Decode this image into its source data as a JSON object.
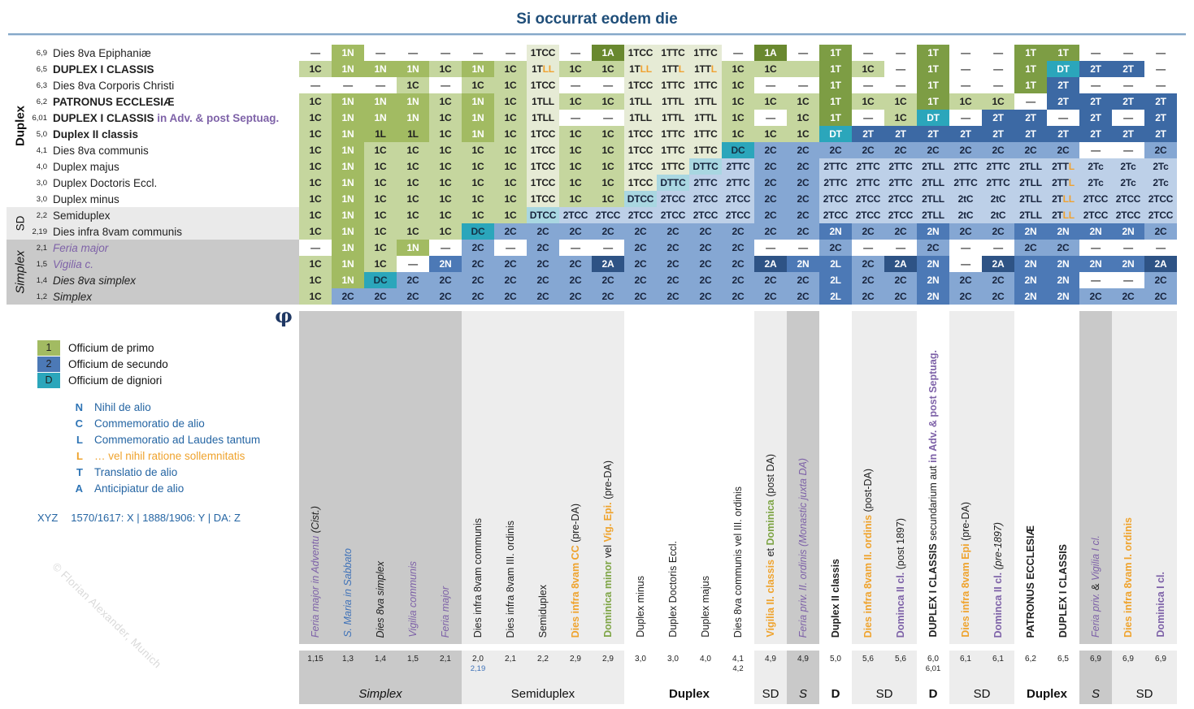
{
  "title": "Si occurrat eodem die",
  "phi": "φ",
  "watermark": "© Florian Alexander, Munich",
  "colors": {
    "title_navy": "#1f4e79",
    "rule_blue": "#84a7c8",
    "purple": "#7e62a8",
    "label_blue": "#3f72b8",
    "orange": "#efa32d",
    "label_green": "#7da444",
    "green_1C": "#c5d69e",
    "green_1N": "#a2bb62",
    "green_pale_1T": "#e6ebd5",
    "green_1T_dark": "#7d9d44",
    "green_1A": "#69882f",
    "blue_2C": "#85a7d3",
    "blue_pale_2T": "#bdd0e8",
    "blue_2N": "#4c79b6",
    "blue_2T": "#3c69a4",
    "blue_2A": "#2e5385",
    "teal_D": "#2ba6bb",
    "teal_pale_D": "#a9d7e1",
    "band_dark": "#c9c9c9",
    "band_light": "#ededed",
    "band_sd_left": "#eaeaea"
  },
  "legend": {
    "swatches": [
      {
        "key": "1",
        "desc": "Officium de primo",
        "color": "#a2bb62"
      },
      {
        "key": "2",
        "desc": "Officium de secundo",
        "color": "#4c79b6"
      },
      {
        "key": "D",
        "desc": "Officium de digniori",
        "color": "#2ba6bb"
      }
    ],
    "letters": [
      {
        "key": "N",
        "desc": "Nihil de alio",
        "orange": false
      },
      {
        "key": "C",
        "desc": "Commemoratio de alio",
        "orange": false
      },
      {
        "key": "L",
        "desc": "Commemoratio ad Laudes tantum",
        "orange": false
      },
      {
        "key": "L",
        "desc": "… vel nihil ratione sollemnitatis",
        "orange": true
      },
      {
        "key": "T",
        "desc": "Translatio de alio",
        "orange": false
      },
      {
        "key": "A",
        "desc": "Anticipiatur de alio",
        "orange": false
      }
    ],
    "note_prefix": "XYZ",
    "note_body": "1570/1617: X | 1888/1906: Y | DA: Z"
  },
  "chart_data": {
    "type": "table",
    "title": "Si occurrat eodem die",
    "row_groups": [
      {
        "label": "Duplex",
        "start": 1,
        "end": 10,
        "band": "",
        "style": "b"
      },
      {
        "label": "SD",
        "start": 11,
        "end": 12,
        "band": "sd",
        "style": ""
      },
      {
        "label": "Simplex",
        "start": 13,
        "end": 16,
        "band": "sx",
        "style": "i"
      }
    ],
    "rows": [
      {
        "num": "6,9",
        "parts": [
          {
            "t": "Dies 8va Epiphaniæ",
            "c": ""
          }
        ]
      },
      {
        "num": "6,5",
        "parts": [
          {
            "t": "DUPLEX I CLASSIS",
            "c": "b"
          }
        ]
      },
      {
        "num": "6,3",
        "parts": [
          {
            "t": "Dies 8va Corporis Christi",
            "c": ""
          }
        ]
      },
      {
        "num": "6,2",
        "parts": [
          {
            "t": "PATRONUS ECCLESIÆ",
            "c": "b"
          }
        ]
      },
      {
        "num": "6,01",
        "parts": [
          {
            "t": "DUPLEX I CLASSIS",
            "c": "b"
          },
          {
            "t": " in Adv. & post Septuag.",
            "c": "bP"
          }
        ]
      },
      {
        "num": "5,0",
        "parts": [
          {
            "t": "Duplex II classis",
            "c": "b"
          }
        ]
      },
      {
        "num": "4,1",
        "parts": [
          {
            "t": "Dies 8va communis",
            "c": ""
          }
        ]
      },
      {
        "num": "4,0",
        "parts": [
          {
            "t": "Duplex majus",
            "c": ""
          }
        ]
      },
      {
        "num": "3,0",
        "parts": [
          {
            "t": "Duplex Doctoris Eccl.",
            "c": ""
          }
        ]
      },
      {
        "num": "3,0",
        "parts": [
          {
            "t": "Duplex minus",
            "c": ""
          }
        ]
      },
      {
        "num": "2,2",
        "parts": [
          {
            "t": "Semiduplex",
            "c": ""
          }
        ]
      },
      {
        "num": "2,19",
        "parts": [
          {
            "t": "Dies infra 8vam communis",
            "c": ""
          }
        ]
      },
      {
        "num": "2,1",
        "parts": [
          {
            "t": "Feria major",
            "c": "iP"
          }
        ]
      },
      {
        "num": "1,5",
        "parts": [
          {
            "t": "Vigilia c.",
            "c": "iP"
          }
        ]
      },
      {
        "num": "1,4",
        "parts": [
          {
            "t": "Dies 8va simplex",
            "c": "i"
          }
        ]
      },
      {
        "num": "1,2",
        "parts": [
          {
            "t": "Simplex",
            "c": "i"
          }
        ]
      }
    ],
    "columns": [
      {
        "num": "1,15",
        "band": "dk",
        "parts": [
          {
            "t": "Feria major in Adventu",
            "c": "iP"
          },
          {
            "t": " (Cist.)",
            "c": "i"
          }
        ]
      },
      {
        "num": "1,3",
        "band": "dk",
        "parts": [
          {
            "t": "S. Maria in Sabbato",
            "c": "iB"
          }
        ]
      },
      {
        "num": "1,4",
        "band": "dk",
        "parts": [
          {
            "t": "Dies 8va simplex",
            "c": "i"
          }
        ]
      },
      {
        "num": "1,5",
        "band": "dk",
        "parts": [
          {
            "t": "Vigilia communis",
            "c": "iP"
          }
        ]
      },
      {
        "num": "2,1",
        "band": "dk",
        "parts": [
          {
            "t": "Feria major",
            "c": "iP"
          }
        ]
      },
      {
        "num": "2,0",
        "sub": "2,19",
        "subc": "blue",
        "band": "lt",
        "parts": [
          {
            "t": "Dies infra 8vam communis",
            "c": ""
          }
        ]
      },
      {
        "num": "2,1",
        "band": "lt",
        "parts": [
          {
            "t": "Dies infra 8vam III. ordinis",
            "c": ""
          }
        ]
      },
      {
        "num": "2,2",
        "band": "lt",
        "parts": [
          {
            "t": "Semiduplex",
            "c": ""
          }
        ]
      },
      {
        "num": "2,9",
        "band": "lt",
        "parts": [
          {
            "t": "Dies infra 8vam CC",
            "c": "o"
          },
          {
            "t": " (pre-DA)",
            "c": ""
          }
        ]
      },
      {
        "num": "2,9",
        "band": "lt",
        "parts": [
          {
            "t": "Dominica minor",
            "c": "g"
          },
          {
            "t": " vel ",
            "c": ""
          },
          {
            "t": "Vig. Epi.",
            "c": "o"
          },
          {
            "t": " (pre-DA)",
            "c": ""
          }
        ]
      },
      {
        "num": "3,0",
        "band": "wh",
        "parts": [
          {
            "t": "Duplex minus",
            "c": ""
          }
        ]
      },
      {
        "num": "3,0",
        "band": "wh",
        "parts": [
          {
            "t": "Duplex Doctoris Eccl.",
            "c": ""
          }
        ]
      },
      {
        "num": "4,0",
        "band": "wh",
        "parts": [
          {
            "t": "Duplex majus",
            "c": ""
          }
        ]
      },
      {
        "num": "4,1",
        "sub": "4,2",
        "subc": "dark",
        "band": "wh",
        "parts": [
          {
            "t": "Dies 8va communis vel III. ordinis",
            "c": ""
          }
        ]
      },
      {
        "num": "4,9",
        "band": "lt",
        "parts": [
          {
            "t": "Vigilia II. classis",
            "c": "o"
          },
          {
            "t": " et ",
            "c": ""
          },
          {
            "t": "Dominica",
            "c": "g"
          },
          {
            "t": " (post DA)",
            "c": ""
          }
        ]
      },
      {
        "num": "4,9",
        "band": "dk",
        "parts": [
          {
            "t": "Feria priv. II. ordinis (Monastic juxta DA)",
            "c": "iP"
          }
        ]
      },
      {
        "num": "5,0",
        "band": "wh",
        "parts": [
          {
            "t": "Duplex II classis",
            "c": "b"
          }
        ]
      },
      {
        "num": "5,6",
        "band": "lt",
        "parts": [
          {
            "t": "Dies infra 8vam II. ordinis",
            "c": "o"
          },
          {
            "t": " (post-DA)",
            "c": ""
          }
        ]
      },
      {
        "num": "5,6",
        "band": "lt",
        "parts": [
          {
            "t": "Dominca II cl.",
            "c": "p"
          },
          {
            "t": " (post 1897)",
            "c": ""
          }
        ]
      },
      {
        "num": "6,0",
        "sub": "6,01",
        "subc": "dark",
        "band": "wh",
        "parts": [
          {
            "t": "DUPLEX I CLASSIS",
            "c": "b"
          },
          {
            "t": " secundarium aut ",
            "c": ""
          },
          {
            "t": "in Adv. & post Septuag.",
            "c": "bP"
          }
        ]
      },
      {
        "num": "6,1",
        "band": "lt",
        "parts": [
          {
            "t": "Dies infra 8vam Epi",
            "c": "o"
          },
          {
            "t": " (pre-DA)",
            "c": ""
          }
        ]
      },
      {
        "num": "6,1",
        "band": "lt",
        "parts": [
          {
            "t": "Dominca II cl.",
            "c": "p"
          },
          {
            "t": " (pre-1897)",
            "c": "i"
          }
        ]
      },
      {
        "num": "6,2",
        "band": "wh",
        "parts": [
          {
            "t": "PATRONUS ECCLESIÆ",
            "c": "b"
          }
        ]
      },
      {
        "num": "6,5",
        "band": "wh",
        "parts": [
          {
            "t": "DUPLEX I CLASSIS",
            "c": "b"
          }
        ]
      },
      {
        "num": "6,9",
        "band": "dk",
        "parts": [
          {
            "t": "Feria priv.",
            "c": "iP"
          },
          {
            "t": " & ",
            "c": ""
          },
          {
            "t": "Vigilia I cl.",
            "c": "iP"
          }
        ]
      },
      {
        "num": "6,9",
        "band": "lt",
        "parts": [
          {
            "t": "Dies infra 8vam I. ordinis",
            "c": "o"
          }
        ]
      },
      {
        "num": "6,9",
        "band": "lt",
        "parts": [
          {
            "t": "Dominica I cl.",
            "c": "p"
          }
        ]
      }
    ],
    "bottom_groups": [
      {
        "label": "Simplex",
        "start": 1,
        "end": 5,
        "style": "i"
      },
      {
        "label": "Semiduplex",
        "start": 6,
        "end": 10,
        "style": ""
      },
      {
        "label": "Duplex",
        "start": 11,
        "end": 14,
        "style": "b"
      },
      {
        "label": "SD",
        "start": 15,
        "end": 15,
        "style": ""
      },
      {
        "label": "S",
        "start": 16,
        "end": 16,
        "style": "i"
      },
      {
        "label": "D",
        "start": 17,
        "end": 17,
        "style": "b"
      },
      {
        "label": "SD",
        "start": 18,
        "end": 19,
        "style": ""
      },
      {
        "label": "D",
        "start": 20,
        "end": 20,
        "style": "b"
      },
      {
        "label": "SD",
        "start": 21,
        "end": 22,
        "style": ""
      },
      {
        "label": "Duplex",
        "start": 23,
        "end": 24,
        "style": "b"
      },
      {
        "label": "S",
        "start": 25,
        "end": 25,
        "style": "i"
      },
      {
        "label": "SD",
        "start": 26,
        "end": 27,
        "style": ""
      }
    ],
    "cells": [
      [
        "—|w",
        "1N|n1",
        "—|w",
        "—|w",
        "—|w",
        "—|w",
        "—|w",
        "1TCC|p1",
        "—|w",
        "1A|a1",
        "1TCC|p1",
        "1TTC|p1",
        "1TTC|p1",
        "—|w",
        "1A|a1",
        "—|w",
        "1T|t1",
        "—|w",
        "—|w",
        "1T|t1",
        "—|w",
        "—|w",
        "1T|t1",
        "1T|t1",
        "—|w",
        "—|w",
        "—|w"
      ],
      [
        "1C|c1",
        "1N|n1",
        "1N|n1",
        "1N|n1",
        "1C|c1",
        "1N|n1",
        "1C|c1",
        "1TLL|p1|2",
        "1C|c1",
        "1C|c1",
        "1TLL|p1|2",
        "1TTL|p1|1",
        "1TTL|p1|1",
        "1C|c1",
        "1C|c1",
        "|c1",
        "1T|t1",
        "1C|c1",
        "—|w",
        "1T|t1",
        "—|w",
        "—|w",
        "1T|t1",
        "DT|dt",
        "2T|t2",
        "2T|t2",
        "—|w"
      ],
      [
        "—|w",
        "—|w",
        "—|w",
        "1C|c1",
        "—|w",
        "1C|c1",
        "1C|c1",
        "1TCC|p1",
        "—|w",
        "—|w",
        "1TCC|p1",
        "1TTC|p1",
        "1TTC|p1",
        "1C|c1",
        "—|w",
        "—|w",
        "1T|t1",
        "—|w",
        "—|w",
        "1T|t1",
        "—|w",
        "—|w",
        "1T|t1",
        "2T|t2",
        "—|w",
        "—|w",
        "—|w"
      ],
      [
        "1C|c1",
        "1N|n1",
        "1N|n1",
        "1N|n1",
        "1C|c1",
        "1N|n1",
        "1C|c1",
        "1TLL|p1",
        "1C|c1",
        "1C|c1",
        "1TLL|p1",
        "1TTL|p1",
        "1TTL|p1",
        "1C|c1",
        "1C|c1",
        "1C|c1",
        "1T|t1",
        "1C|c1",
        "1C|c1",
        "1T|t1",
        "1C|c1",
        "1C|c1",
        "—|w",
        "2T|t2",
        "2T|t2",
        "2T|t2",
        "2T|t2"
      ],
      [
        "1C|c1",
        "1N|n1",
        "1N|n1",
        "1N|n1",
        "1C|c1",
        "1N|n1",
        "1C|c1",
        "1TLL|p1",
        "—|w",
        "—|w",
        "1TLL|p1",
        "1TTL|p1",
        "1TTL|p1",
        "1C|c1",
        "—|w",
        "1C|c1",
        "1T|t1",
        "—|w",
        "1C|c1",
        "DT|dt",
        "—|w",
        "2T|t2",
        "2T|t2",
        "—|w",
        "2T|t2",
        "—|w",
        "2T|t2"
      ],
      [
        "1C|c1",
        "1N|n1",
        "1L|l1",
        "1L|l1",
        "1C|c1",
        "1N|n1",
        "1C|c1",
        "1TCC|p1",
        "1C|c1",
        "1C|c1",
        "1TCC|p1",
        "1TTC|p1",
        "1TTC|p1",
        "1C|c1",
        "1C|c1",
        "1C|c1",
        "DT|dt",
        "2T|t2",
        "2T|t2",
        "2T|t2",
        "2T|t2",
        "2T|t2",
        "2T|t2",
        "2T|t2",
        "2T|t2",
        "2T|t2",
        "2T|t2"
      ],
      [
        "1C|c1",
        "1N|n1",
        "1C|c1",
        "1C|c1",
        "1C|c1",
        "1C|c1",
        "1C|c1",
        "1TCC|p1",
        "1C|c1",
        "1C|c1",
        "1TCC|p1",
        "1TTC|p1",
        "1TTC|p1",
        "DC|dc",
        "2C|c2",
        "2C|c2",
        "2C|c2",
        "2C|c2",
        "2C|c2",
        "2C|c2",
        "2C|c2",
        "2C|c2",
        "2C|c2",
        "2C|c2",
        "—|w",
        "—|w",
        "2C|c2"
      ],
      [
        "1C|c1",
        "1N|n1",
        "1C|c1",
        "1C|c1",
        "1C|c1",
        "1C|c1",
        "1C|c1",
        "1TCC|p1",
        "1C|c1",
        "1C|c1",
        "1TCC|p1",
        "1TTC|p1",
        "DTTC|dp",
        "2TTC|p2",
        "2C|c2",
        "2C|c2",
        "2TTC|p2",
        "2TTC|p2",
        "2TTC|p2",
        "2TLL|p2",
        "2TTC|p2",
        "2TTC|p2",
        "2TLL|p2",
        "2TTL|p2|1",
        "2Tc|p2",
        "2Tc|p2",
        "2Tc|p2"
      ],
      [
        "1C|c1",
        "1N|n1",
        "1C|c1",
        "1C|c1",
        "1C|c1",
        "1C|c1",
        "1C|c1",
        "1TCC|p1",
        "1C|c1",
        "1C|c1",
        "1TCC|p1",
        "DTTC|dp",
        "2TTC|p2",
        "2TTC|p2",
        "2C|c2",
        "2C|c2",
        "2TTC|p2",
        "2TTC|p2",
        "2TTC|p2",
        "2TLL|p2",
        "2TTC|p2",
        "2TTC|p2",
        "2TLL|p2",
        "2TTL|p2|1",
        "2Tc|p2",
        "2Tc|p2",
        "2Tc|p2"
      ],
      [
        "1C|c1",
        "1N|n1",
        "1C|c1",
        "1C|c1",
        "1C|c1",
        "1C|c1",
        "1C|c1",
        "1TCC|p1",
        "1C|c1",
        "1C|c1",
        "DTCC|dp",
        "2TCC|p2",
        "2TCC|p2",
        "2TCC|p2",
        "2C|c2",
        "2C|c2",
        "2TCC|p2",
        "2TCC|p2",
        "2TCC|p2",
        "2TLL|p2",
        "2tC|p2",
        "2tC|p2",
        "2TLL|p2",
        "2TLL|p2|2",
        "2TCC|p2",
        "2TCC|p2",
        "2TCC|p2"
      ],
      [
        "1C|c1",
        "1N|n1",
        "1C|c1",
        "1C|c1",
        "1C|c1",
        "1C|c1",
        "1C|c1",
        "DTCC|dp",
        "2TCC|p2",
        "2TCC|p2",
        "2TCC|p2",
        "2TCC|p2",
        "2TCC|p2",
        "2TCC|p2",
        "2C|c2",
        "2C|c2",
        "2TCC|p2",
        "2TCC|p2",
        "2TCC|p2",
        "2TLL|p2",
        "2tC|p2",
        "2tC|p2",
        "2TLL|p2",
        "2TLL|p2|2",
        "2TCC|p2",
        "2TCC|p2",
        "2TCC|p2"
      ],
      [
        "1C|c1",
        "1N|n1",
        "1C|c1",
        "1C|c1",
        "1C|c1",
        "DC|dc",
        "2C|c2",
        "2C|c2",
        "2C|c2",
        "2C|c2",
        "2C|c2",
        "2C|c2",
        "2C|c2",
        "2C|c2",
        "2C|c2",
        "2C|c2",
        "2N|n2",
        "2C|c2",
        "2C|c2",
        "2N|n2",
        "2C|c2",
        "2C|c2",
        "2N|n2",
        "2N|n2",
        "2N|n2",
        "2N|n2",
        "2C|c2"
      ],
      [
        "—|w",
        "1N|n1",
        "1C|c1",
        "1N|n1",
        "—|w",
        "2C|c2",
        "—|w",
        "2C|c2",
        "—|w",
        "—|w",
        "2C|c2",
        "2C|c2",
        "2C|c2",
        "2C|c2",
        "—|w",
        "—|w",
        "2C|c2",
        "—|w",
        "—|w",
        "2C|c2",
        "—|w",
        "—|w",
        "2C|c2",
        "2C|c2",
        "—|w",
        "—|w",
        "—|w"
      ],
      [
        "1C|c1",
        "1N|n1",
        "1C|c1",
        "—|w",
        "2N|n2",
        "2C|c2",
        "2C|c2",
        "2C|c2",
        "2C|c2",
        "2A|a2",
        "2C|c2",
        "2C|c2",
        "2C|c2",
        "2C|c2",
        "2A|a2",
        "2N|n2",
        "2L|n2",
        "2C|c2",
        "2A|a2",
        "2N|n2",
        "—|w",
        "2A|a2",
        "2N|n2",
        "2N|n2",
        "2N|n2",
        "2N|n2",
        "2A|a2"
      ],
      [
        "1C|c1",
        "1N|n1",
        "DC|dc",
        "2C|c2",
        "2C|c2",
        "2C|c2",
        "2C|c2",
        "2C|c2",
        "2C|c2",
        "2C|c2",
        "2C|c2",
        "2C|c2",
        "2C|c2",
        "2C|c2",
        "2C|c2",
        "2C|c2",
        "2L|n2",
        "2C|c2",
        "2C|c2",
        "2N|n2",
        "2C|c2",
        "2C|c2",
        "2N|n2",
        "2N|n2",
        "—|w",
        "—|w",
        "2C|c2"
      ],
      [
        "1C|c1",
        "2C|c2",
        "2C|c2",
        "2C|c2",
        "2C|c2",
        "2C|c2",
        "2C|c2",
        "2C|c2",
        "2C|c2",
        "2C|c2",
        "2C|c2",
        "2C|c2",
        "2C|c2",
        "2C|c2",
        "2C|c2",
        "2C|c2",
        "2L|n2",
        "2C|c2",
        "2C|c2",
        "2N|n2",
        "2C|c2",
        "2C|c2",
        "2N|n2",
        "2N|n2",
        "2C|c2",
        "2C|c2",
        "2C|c2"
      ]
    ]
  }
}
